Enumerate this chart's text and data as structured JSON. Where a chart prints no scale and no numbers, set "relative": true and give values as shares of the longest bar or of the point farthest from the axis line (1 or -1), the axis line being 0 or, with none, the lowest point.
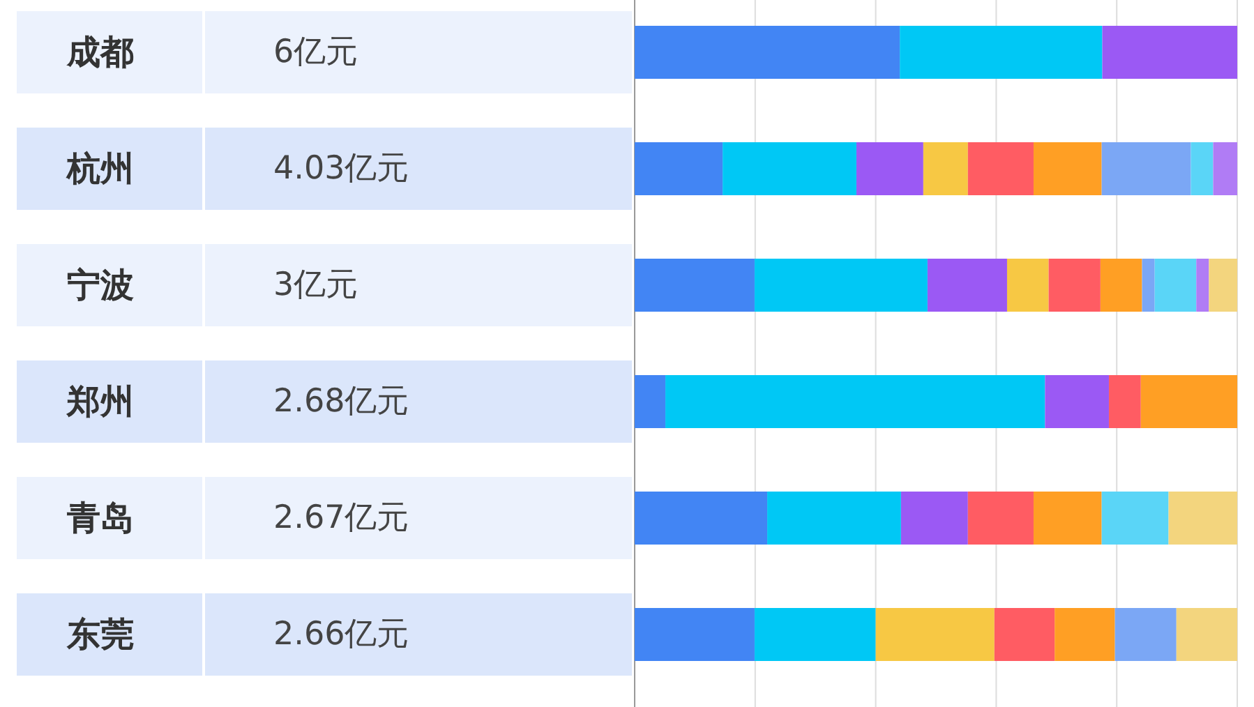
{
  "chart_data": {
    "type": "bar",
    "orientation": "horizontal",
    "stacked": true,
    "relative": true,
    "grid": "x",
    "categories": [
      "成都",
      "杭州",
      "宁波",
      "郑州",
      "青岛",
      "东莞"
    ],
    "annotations": [
      "6亿元",
      "4.03亿元",
      "3亿元",
      "2.68亿元",
      "2.67亿元",
      "2.66亿元"
    ],
    "series": [
      {
        "color": "#4285f4",
        "values": [
          0.44,
          0.146,
          0.199,
          0.051,
          0.22,
          0.199
        ]
      },
      {
        "color": "#00c8f5",
        "values": [
          0.336,
          0.222,
          0.287,
          0.63,
          0.222,
          0.201
        ]
      },
      {
        "color": "#9b59f4",
        "values": [
          0.224,
          0.111,
          0.132,
          0.106,
          0.111,
          null
        ]
      },
      {
        "color": "#f7c844",
        "values": [
          null,
          0.074,
          0.069,
          null,
          null,
          0.197
        ]
      },
      {
        "color": "#ff5c63",
        "values": [
          null,
          0.109,
          0.086,
          0.053,
          0.109,
          0.1
        ]
      },
      {
        "color": "#ff9f24",
        "values": [
          null,
          0.113,
          0.069,
          0.16,
          0.113,
          0.1
        ]
      },
      {
        "color": "#7ba7f5",
        "values": [
          null,
          0.148,
          0.021,
          null,
          null,
          0.102
        ]
      },
      {
        "color": "#5ad5f7",
        "values": [
          null,
          0.037,
          0.069,
          null,
          0.111,
          null
        ]
      },
      {
        "color": "#b07cf5",
        "values": [
          null,
          0.04,
          0.021,
          null,
          null,
          null
        ]
      },
      {
        "color": "#f3d57e",
        "values": [
          null,
          null,
          0.047,
          null,
          0.114,
          0.101
        ]
      }
    ]
  }
}
